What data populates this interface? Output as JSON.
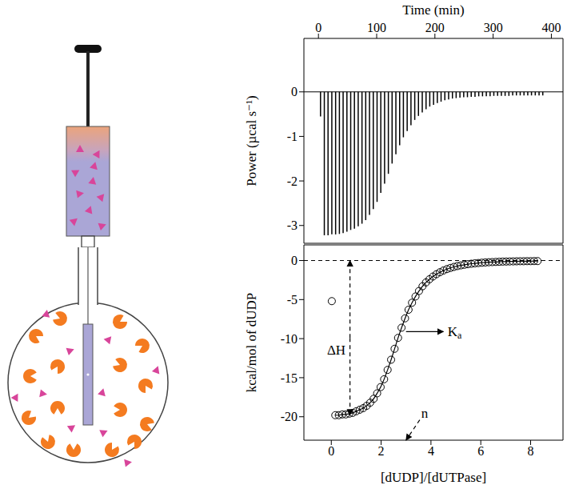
{
  "chart_data": [
    {
      "type": "bar",
      "x_label": "Time (min)",
      "y_label": "Power (µcal s⁻¹)",
      "color": "#000000",
      "x": [
        3,
        9.5,
        15.9,
        22.4,
        28.9,
        35.4,
        41.8,
        48.3,
        54.8,
        61.2,
        67.7,
        74.2,
        80.6,
        87.1,
        93.6,
        100.1,
        106.5,
        113,
        119.5,
        125.9,
        132.4,
        138.9,
        145.3,
        151.8,
        158.3,
        164.8,
        171.2,
        177.7,
        184.2,
        190.6,
        197.1,
        203.6,
        210,
        216.5,
        223,
        229.5,
        235.9,
        242.4,
        248.9,
        255.3,
        261.8,
        268.3,
        274.7,
        281.2,
        287.7,
        294.2,
        300.6,
        307.1,
        313.6,
        320,
        326.5,
        333,
        339.4,
        345.9,
        352.4,
        358.9,
        365.3,
        371.8,
        378.3,
        384.7
      ],
      "values": [
        -0.55,
        -3.22,
        -3.22,
        -3.2,
        -3.2,
        -3.19,
        -3.17,
        -3.14,
        -3.1,
        -3.07,
        -3.02,
        -2.96,
        -2.88,
        -2.76,
        -2.63,
        -2.47,
        -2.27,
        -2.06,
        -1.84,
        -1.61,
        -1.4,
        -1.2,
        -1.02,
        -0.88,
        -0.75,
        -0.63,
        -0.54,
        -0.46,
        -0.39,
        -0.33,
        -0.29,
        -0.25,
        -0.22,
        -0.19,
        -0.17,
        -0.15,
        -0.14,
        -0.13,
        -0.12,
        -0.12,
        -0.11,
        -0.11,
        -0.1,
        -0.1,
        -0.1,
        -0.1,
        -0.09,
        -0.09,
        -0.09,
        -0.09,
        -0.09,
        -0.08,
        -0.08,
        -0.08,
        -0.08,
        -0.08,
        -0.08,
        -0.08,
        -0.08,
        -0.08
      ],
      "xlim": [
        -25,
        420
      ],
      "xticks": [
        0,
        100,
        200,
        300,
        400
      ],
      "ylim": [
        -3.4,
        1.2
      ],
      "yticks": [
        -3,
        -2,
        -1,
        0
      ],
      "hlines": [
        {
          "y": 0,
          "line_style": "solid"
        }
      ]
    },
    {
      "type": "scatter",
      "x_label": "[dUDP]/[dUTPase]",
      "y_label": "kcal/mol of dUDP",
      "x": [
        0.02,
        0.16,
        0.3,
        0.44,
        0.58,
        0.72,
        0.86,
        1,
        1.14,
        1.28,
        1.42,
        1.56,
        1.7,
        1.84,
        1.98,
        2.12,
        2.26,
        2.4,
        2.54,
        2.68,
        2.82,
        2.96,
        3.1,
        3.24,
        3.38,
        3.52,
        3.66,
        3.8,
        3.94,
        4.08,
        4.22,
        4.36,
        4.5,
        4.64,
        4.78,
        4.92,
        5.06,
        5.2,
        5.34,
        5.48,
        5.62,
        5.76,
        5.9,
        6.04,
        6.18,
        6.32,
        6.46,
        6.6,
        6.74,
        6.88,
        7.02,
        7.16,
        7.3,
        7.44,
        7.58,
        7.72,
        7.86,
        8,
        8.14,
        8.28
      ],
      "series": [
        {
          "type": "line",
          "line_style": "solid",
          "color": "#000000",
          "values": [
            null,
            -19.8,
            -19.8,
            -19.7,
            -19.7,
            -19.6,
            -19.5,
            -19.3,
            -19.1,
            -18.9,
            -18.6,
            -18.2,
            -17.7,
            -17,
            -16.2,
            -15.2,
            -14,
            -12.7,
            -11.3,
            -9.9,
            -8.6,
            -7.4,
            -6.3,
            -5.4,
            -4.6,
            -3.9,
            -3.3,
            -2.8,
            -2.4,
            -2.05,
            -1.75,
            -1.5,
            -1.28,
            -1.1,
            -0.95,
            -0.82,
            -0.71,
            -0.62,
            -0.54,
            -0.47,
            -0.41,
            -0.36,
            -0.32,
            -0.28,
            -0.25,
            -0.22,
            -0.2,
            -0.18,
            -0.16,
            -0.14,
            -0.13,
            -0.12,
            -0.11,
            -0.1,
            -0.09,
            -0.09,
            -0.08,
            -0.08,
            -0.07,
            -0.07
          ]
        },
        {
          "type": "scatter",
          "marker": "circle",
          "color": "#000000",
          "values": [
            -5.2,
            -19.8,
            -19.8,
            -19.7,
            -19.7,
            -19.6,
            -19.5,
            -19.3,
            -19.1,
            -18.9,
            -18.6,
            -18.2,
            -17.7,
            -17,
            -16.2,
            -15.2,
            -14,
            -12.7,
            -11.3,
            -9.9,
            -8.6,
            -7.4,
            -6.3,
            -5.4,
            -4.6,
            -3.9,
            -3.3,
            -2.8,
            -2.4,
            -2.05,
            -1.75,
            -1.5,
            -1.28,
            -1.1,
            -0.95,
            -0.82,
            -0.71,
            -0.62,
            -0.54,
            -0.47,
            -0.41,
            -0.36,
            -0.32,
            -0.28,
            -0.25,
            -0.22,
            -0.2,
            -0.18,
            -0.16,
            -0.14,
            -0.13,
            -0.12,
            -0.11,
            -0.1,
            -0.09,
            -0.09,
            -0.08,
            -0.08,
            -0.07,
            -0.07
          ]
        }
      ],
      "xlim": [
        -1.1,
        9.3
      ],
      "xticks": [
        0,
        2,
        4,
        6,
        8
      ],
      "ylim": [
        -23,
        2
      ],
      "yticks": [
        -20,
        -15,
        -10,
        -5,
        0
      ],
      "hlines": [
        {
          "y": 0,
          "line_style": "dashed"
        }
      ],
      "annotations": [
        {
          "text": "ΔH",
          "x": 0.2,
          "y": -11.5,
          "line_style": "dashed",
          "arrows": [
            [
              [
                0.75,
                -9.9
              ],
              [
                0.75,
                0
              ]
            ],
            [
              [
                0.75,
                -9.9
              ],
              [
                0.75,
                -19.8
              ]
            ]
          ]
        },
        {
          "text": "Ka",
          "x": 4.95,
          "y": -9.1,
          "line_style": "solid",
          "arrows": [
            [
              [
                3.0,
                -9.1
              ],
              [
                4.5,
                -9.1
              ]
            ]
          ]
        },
        {
          "text": "n",
          "x": 3.75,
          "y": -19.6,
          "line_style": "dashed",
          "arrows": [
            [
              [
                3.55,
                -20.4
              ],
              [
                3.0,
                -23
              ]
            ]
          ]
        }
      ]
    }
  ]
}
